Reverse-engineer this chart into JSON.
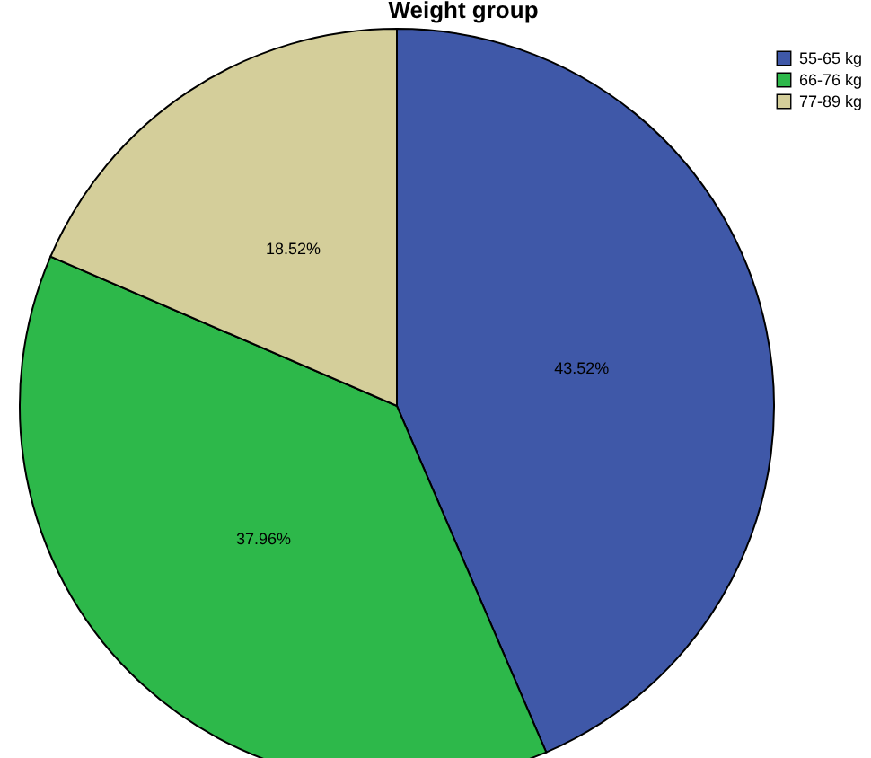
{
  "chart_data": {
    "type": "pie",
    "title": "Weight group",
    "categories": [
      "55-65 kg",
      "66-76 kg",
      "77-89 kg"
    ],
    "values": [
      43.52,
      37.96,
      18.52
    ],
    "colors": [
      "#3f58a8",
      "#2db84a",
      "#d4ce9a"
    ],
    "value_labels": [
      "43.52%",
      "37.96%",
      "18.52%"
    ],
    "legend": "top right"
  }
}
